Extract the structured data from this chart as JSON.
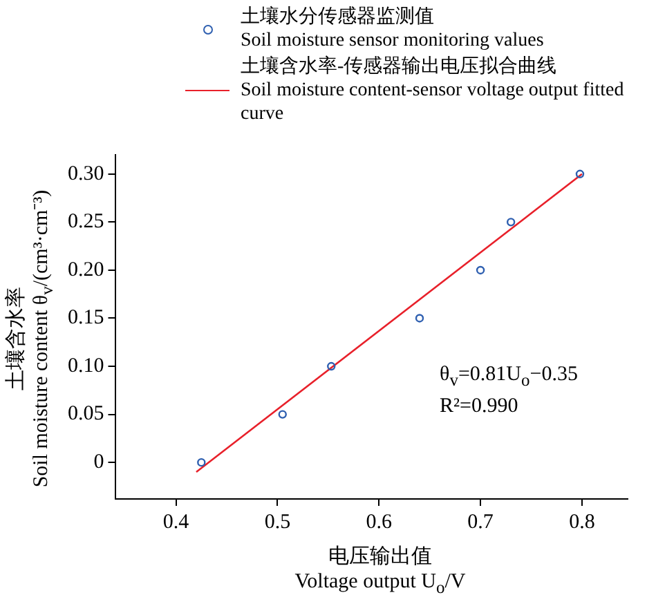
{
  "chart_data": {
    "type": "scatter",
    "xlabel": "电压输出值\nVoltage output U$_{o}$/V",
    "ylabel": "土壤含水率\nSoil moisture content θ$_{v}$/(cm³·cm⁻³)",
    "xlim": [
      0.34,
      0.845
    ],
    "ylim": [
      -0.038,
      0.32
    ],
    "xticks": [
      0.4,
      0.5,
      0.6,
      0.7,
      0.8
    ],
    "yticks": [
      0,
      {
        "value": 0.05,
        "label": "0.05"
      },
      {
        "value": 0.1,
        "label": "0.10"
      },
      {
        "value": 0.15,
        "label": "0.15"
      },
      {
        "value": 0.2,
        "label": "0.20"
      },
      {
        "value": 0.25,
        "label": "0.25"
      },
      {
        "value": 0.3,
        "label": "0.30"
      }
    ],
    "grid": false,
    "legend": "top right",
    "marker": "circle",
    "series": [
      {
        "type": "scatter",
        "name": "土壤水分传感器监测值\nSoil moisture sensor monitoring values",
        "color": "#2e5fb0",
        "x": [
          0.425,
          0.505,
          0.553,
          0.64,
          0.7,
          0.73,
          0.798
        ],
        "values": [
          0,
          0.05,
          0.1,
          0.15,
          0.2,
          0.25,
          0.3
        ]
      },
      {
        "type": "line",
        "name": "土壤含水率-传感器输出电压拟合曲线\nSoil moisture content-sensor voltage output fitted curve",
        "color": "#e8202a",
        "x": [
          0.42,
          0.8
        ],
        "values": [
          -0.01,
          0.3
        ],
        "marker": "none",
        "line_style": "solid"
      }
    ],
    "annotations": [
      "θ$_{v}$=0.81U$_{o}$−0.35",
      "R²=0.990"
    ]
  }
}
